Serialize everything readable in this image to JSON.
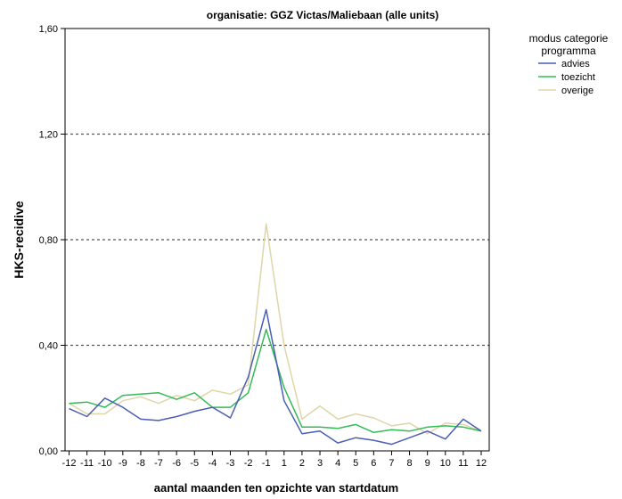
{
  "chart_data": {
    "type": "line",
    "title": "organisatie: GGZ Victas/Maliebaan (alle units)",
    "xlabel": "aantal maanden ten opzichte van startdatum",
    "ylabel": "HKS-recidive",
    "x": [
      -12,
      -11,
      -10,
      -9,
      -8,
      -7,
      -6,
      -5,
      -4,
      -3,
      -2,
      -1,
      1,
      2,
      3,
      4,
      5,
      6,
      7,
      8,
      9,
      10,
      11,
      12
    ],
    "x_tick_labels": [
      "-12",
      "-11",
      "-10",
      "-9",
      "-8",
      "-7",
      "-6",
      "-5",
      "-4",
      "-3",
      "-2",
      "-1",
      "1",
      "2",
      "3",
      "4",
      "5",
      "6",
      "7",
      "8",
      "9",
      "10",
      "11",
      "12"
    ],
    "ylim": [
      0,
      1.6
    ],
    "y_ticks": [
      0,
      0.4,
      0.8,
      1.2,
      1.6
    ],
    "y_tick_labels": [
      "0,00",
      "0,40",
      "0,80",
      "1,20",
      "1,60"
    ],
    "grid": "horizontal-dotted",
    "legend": {
      "title_lines": [
        "modus categorie",
        "programma"
      ],
      "placement": "right-top"
    },
    "series": [
      {
        "name": "advies",
        "color": "#4a5fb5",
        "values": [
          0.16,
          0.13,
          0.2,
          0.165,
          0.12,
          0.115,
          0.13,
          0.15,
          0.165,
          0.125,
          0.28,
          0.535,
          0.19,
          0.065,
          0.075,
          0.03,
          0.05,
          0.04,
          0.025,
          0.05,
          0.075,
          0.045,
          0.12,
          0.075
        ]
      },
      {
        "name": "toezicht",
        "color": "#33bb55",
        "values": [
          0.18,
          0.185,
          0.165,
          0.21,
          0.215,
          0.22,
          0.195,
          0.22,
          0.165,
          0.165,
          0.22,
          0.46,
          0.24,
          0.09,
          0.09,
          0.085,
          0.1,
          0.07,
          0.08,
          0.075,
          0.09,
          0.095,
          0.09,
          0.075
        ]
      },
      {
        "name": "overige",
        "color": "#e0d5a8",
        "values": [
          0.18,
          0.14,
          0.14,
          0.19,
          0.205,
          0.18,
          0.21,
          0.19,
          0.23,
          0.215,
          0.25,
          0.86,
          0.4,
          0.12,
          0.17,
          0.12,
          0.14,
          0.125,
          0.095,
          0.105,
          0.065,
          0.105,
          0.1,
          0.075
        ]
      }
    ]
  }
}
